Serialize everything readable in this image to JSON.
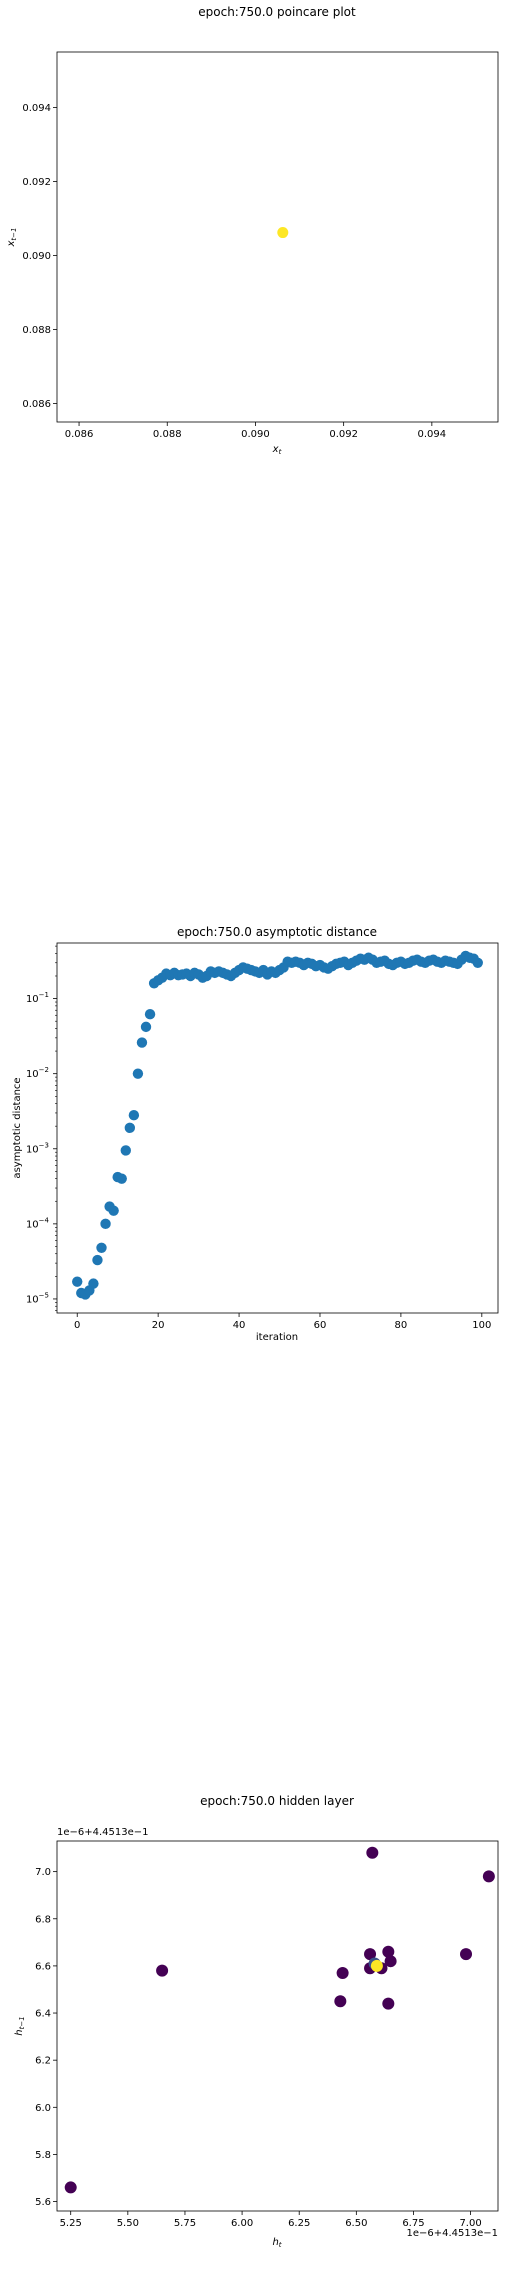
{
  "chart_data": [
    {
      "type": "scatter",
      "title": "epoch:750.0 poincare plot",
      "xlabel": "x_t",
      "ylabel": "x_{t−1}",
      "xlim": [
        0.0855,
        0.0955
      ],
      "ylim": [
        0.0855,
        0.0955
      ],
      "xticks": [
        0.086,
        0.088,
        0.09,
        0.092,
        0.094
      ],
      "xtick_labels": [
        "0.086",
        "0.088",
        "0.090",
        "0.092",
        "0.094"
      ],
      "yticks": [
        0.086,
        0.088,
        0.09,
        0.092,
        0.094
      ],
      "ytick_labels": [
        "0.086",
        "0.088",
        "0.090",
        "0.092",
        "0.094"
      ],
      "point_color": "#fde725",
      "points": [
        [
          0.09062,
          0.09062
        ]
      ]
    },
    {
      "type": "scatter",
      "title": "epoch:750.0 asymptotic distance",
      "xlabel": "iteration",
      "ylabel": "asymptotic distance",
      "yscale": "log",
      "xlim": [
        -5,
        104
      ],
      "ylim": [
        6.5e-06,
        0.55
      ],
      "xticks": [
        0,
        20,
        40,
        60,
        80,
        100
      ],
      "xtick_labels": [
        "0",
        "20",
        "40",
        "60",
        "80",
        "100"
      ],
      "ytick_exponents": [
        -5,
        -4,
        -3,
        -2,
        -1
      ],
      "ytick_labels": [
        "10",
        "10",
        "10",
        "10",
        "10"
      ],
      "ytick_label_exponents": [
        "−5",
        "−4",
        "−3",
        "−2",
        "−1"
      ],
      "point_color": "#1f77b4",
      "x": [
        0,
        1,
        2,
        3,
        4,
        5,
        6,
        7,
        8,
        9,
        10,
        11,
        12,
        13,
        14,
        15,
        16,
        17,
        18,
        19,
        20,
        21,
        22,
        23,
        24,
        25,
        26,
        27,
        28,
        29,
        30,
        31,
        32,
        33,
        34,
        35,
        36,
        37,
        38,
        39,
        40,
        41,
        42,
        43,
        44,
        45,
        46,
        47,
        48,
        49,
        50,
        51,
        52,
        53,
        54,
        55,
        56,
        57,
        58,
        59,
        60,
        61,
        62,
        63,
        64,
        65,
        66,
        67,
        68,
        69,
        70,
        71,
        72,
        73,
        74,
        75,
        76,
        77,
        78,
        79,
        80,
        81,
        82,
        83,
        84,
        85,
        86,
        87,
        88,
        89,
        90,
        91,
        92,
        93,
        94,
        95,
        96,
        97,
        98,
        99
      ],
      "y": [
        1.7e-05,
        1.2e-05,
        1.15e-05,
        1.3e-05,
        1.6e-05,
        3.3e-05,
        4.8e-05,
        0.0001,
        0.00017,
        0.00015,
        0.00042,
        0.0004,
        0.00095,
        0.0019,
        0.0028,
        0.01,
        0.026,
        0.042,
        0.062,
        0.16,
        0.175,
        0.19,
        0.215,
        0.205,
        0.22,
        0.205,
        0.21,
        0.215,
        0.2,
        0.22,
        0.21,
        0.19,
        0.2,
        0.23,
        0.22,
        0.23,
        0.22,
        0.21,
        0.2,
        0.22,
        0.24,
        0.26,
        0.25,
        0.24,
        0.23,
        0.22,
        0.24,
        0.21,
        0.23,
        0.22,
        0.24,
        0.26,
        0.31,
        0.3,
        0.31,
        0.3,
        0.28,
        0.3,
        0.29,
        0.27,
        0.28,
        0.26,
        0.25,
        0.27,
        0.29,
        0.3,
        0.31,
        0.28,
        0.3,
        0.32,
        0.34,
        0.33,
        0.35,
        0.33,
        0.3,
        0.31,
        0.32,
        0.29,
        0.28,
        0.3,
        0.31,
        0.29,
        0.3,
        0.32,
        0.33,
        0.31,
        0.3,
        0.32,
        0.33,
        0.31,
        0.3,
        0.32,
        0.31,
        0.3,
        0.29,
        0.33,
        0.37,
        0.35,
        0.34,
        0.3
      ]
    },
    {
      "type": "scatter",
      "title": "epoch:750.0 hidden layer",
      "xlabel": "h_t",
      "ylabel": "h_{t−1}",
      "x_offset_label": "1e−6+4.4513e−1",
      "y_offset_label": "1e−6+4.4513e−1",
      "xlim": [
        5.19,
        7.12
      ],
      "ylim": [
        5.56,
        7.13
      ],
      "xticks": [
        5.25,
        5.5,
        5.75,
        6.0,
        6.25,
        6.5,
        6.75,
        7.0
      ],
      "xtick_labels": [
        "5.25",
        "5.50",
        "5.75",
        "6.00",
        "6.25",
        "6.50",
        "6.75",
        "7.00"
      ],
      "yticks": [
        5.6,
        5.8,
        6.0,
        6.2,
        6.4,
        6.6,
        6.8,
        7.0
      ],
      "ytick_labels": [
        "5.6",
        "5.8",
        "6.0",
        "6.2",
        "6.4",
        "6.6",
        "6.8",
        "7.0"
      ],
      "colors": {
        "dark": "#440154",
        "mid": "#3b528b",
        "bright": "#fde725"
      },
      "points": [
        {
          "x": 5.25,
          "y": 5.66,
          "c": "dark"
        },
        {
          "x": 5.65,
          "y": 6.58,
          "c": "dark"
        },
        {
          "x": 6.43,
          "y": 6.45,
          "c": "dark"
        },
        {
          "x": 6.44,
          "y": 6.57,
          "c": "dark"
        },
        {
          "x": 6.56,
          "y": 6.65,
          "c": "dark"
        },
        {
          "x": 6.57,
          "y": 7.08,
          "c": "dark"
        },
        {
          "x": 6.64,
          "y": 6.66,
          "c": "dark"
        },
        {
          "x": 6.65,
          "y": 6.62,
          "c": "dark"
        },
        {
          "x": 6.64,
          "y": 6.44,
          "c": "dark"
        },
        {
          "x": 6.98,
          "y": 6.65,
          "c": "dark"
        },
        {
          "x": 7.08,
          "y": 6.98,
          "c": "dark"
        },
        {
          "x": 6.56,
          "y": 6.59,
          "c": "dark"
        },
        {
          "x": 6.61,
          "y": 6.59,
          "c": "dark"
        },
        {
          "x": 6.58,
          "y": 6.61,
          "c": "mid"
        },
        {
          "x": 6.59,
          "y": 6.6,
          "c": "bright"
        }
      ]
    }
  ]
}
